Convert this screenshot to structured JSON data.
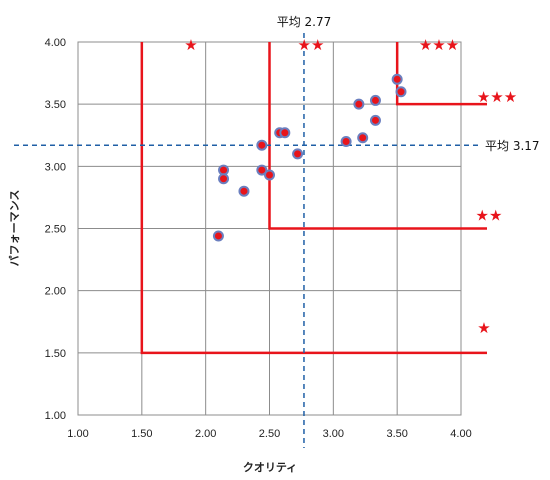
{
  "chart_data": {
    "type": "scatter",
    "xlabel": "クオリティ",
    "ylabel": "パフォーマンス",
    "xlim": [
      1.0,
      4.0
    ],
    "ylim": [
      1.0,
      4.0
    ],
    "xticks": [
      "1.00",
      "1.50",
      "2.00",
      "2.50",
      "3.00",
      "3.50",
      "4.00"
    ],
    "yticks": [
      "1.00",
      "1.50",
      "2.00",
      "2.50",
      "3.00",
      "3.50",
      "4.00"
    ],
    "grid": true,
    "points": [
      {
        "x": 2.1,
        "y": 2.44
      },
      {
        "x": 2.14,
        "y": 2.97
      },
      {
        "x": 2.14,
        "y": 2.9
      },
      {
        "x": 2.3,
        "y": 2.8
      },
      {
        "x": 2.44,
        "y": 3.17
      },
      {
        "x": 2.44,
        "y": 2.97
      },
      {
        "x": 2.5,
        "y": 2.93
      },
      {
        "x": 2.58,
        "y": 3.27
      },
      {
        "x": 2.62,
        "y": 3.27
      },
      {
        "x": 2.72,
        "y": 3.1
      },
      {
        "x": 3.1,
        "y": 3.2
      },
      {
        "x": 3.2,
        "y": 3.5
      },
      {
        "x": 3.23,
        "y": 3.23
      },
      {
        "x": 3.33,
        "y": 3.53
      },
      {
        "x": 3.33,
        "y": 3.37
      },
      {
        "x": 3.5,
        "y": 3.7
      },
      {
        "x": 3.53,
        "y": 3.6
      }
    ],
    "means": {
      "x": 2.77,
      "x_label": "平均 2.77",
      "y": 3.17,
      "y_label": "平均 3.17"
    },
    "thresholds": [
      {
        "x": 1.5,
        "y": 1.5,
        "stars": "★",
        "top_stars": "★"
      },
      {
        "x": 2.5,
        "y": 2.5,
        "stars": "★★",
        "top_stars": "★★"
      },
      {
        "x": 3.5,
        "y": 3.5,
        "stars": "★★★",
        "top_stars": "★★★"
      }
    ],
    "colors": {
      "point_fill": "#e8141b",
      "point_edge": "#6b7fbf",
      "threshold_line": "#e8141b",
      "mean_line": "#1f5fa6",
      "grid": "#8c8c8c"
    }
  }
}
